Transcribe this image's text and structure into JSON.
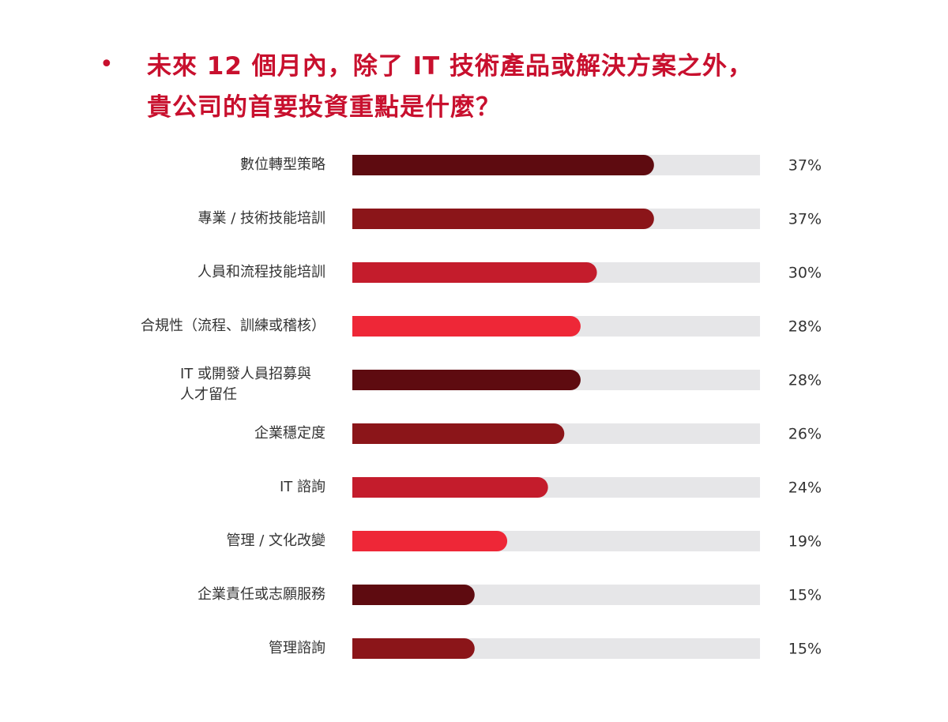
{
  "header": {
    "bullet": "•",
    "title_line1": "未來 12 個月內，除了 IT 技術產品或解決方案之外，",
    "title_line2": "貴公司的首要投資重點是什麼？"
  },
  "chart_data": {
    "type": "bar",
    "orientation": "horizontal",
    "title": "未來 12 個月內，除了 IT 技術產品或解決方案之外，貴公司的首要投資重點是什麼？",
    "categories": [
      [
        "數位轉型策略"
      ],
      [
        "專業 / 技術技能培訓"
      ],
      [
        "人員和流程技能培訓"
      ],
      [
        "合規性（流程、訓練或稽核）"
      ],
      [
        "IT 或開發人員招募與",
        "人才留任"
      ],
      [
        "企業穩定度"
      ],
      [
        "IT 諮詢"
      ],
      [
        "管理 / 文化改變"
      ],
      [
        "企業責任或志願服務"
      ],
      [
        "管理諮詢"
      ]
    ],
    "values": [
      37,
      37,
      30,
      28,
      28,
      26,
      24,
      19,
      15,
      15
    ],
    "value_labels": [
      "37%",
      "37%",
      "30%",
      "28%",
      "28%",
      "26%",
      "24%",
      "19%",
      "15%",
      "15%"
    ],
    "xlim": [
      0,
      50
    ],
    "grid": false,
    "legend": "none",
    "colors": [
      "#5e0b10",
      "#8b1519",
      "#c41c2c",
      "#ee2737"
    ],
    "track_color": "#e6e6e8"
  }
}
